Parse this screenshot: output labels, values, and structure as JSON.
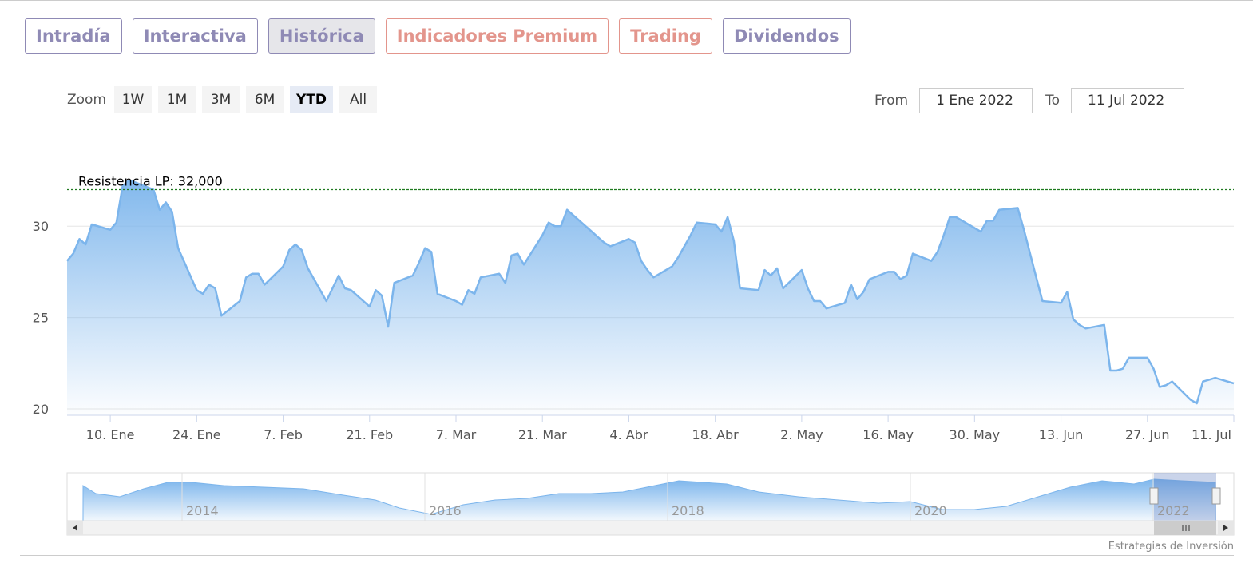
{
  "tabs": [
    "Intradía",
    "Interactiva",
    "Histórica",
    "Indicadores Premium",
    "Trading",
    "Dividendos"
  ],
  "active_tab": 2,
  "zoom": {
    "label": "Zoom",
    "buttons": [
      "1W",
      "1M",
      "3M",
      "6M",
      "YTD",
      "All"
    ],
    "active": 4
  },
  "range": {
    "from_label": "From",
    "from": "1 Ene 2022",
    "to_label": "To",
    "to": "11 Jul 2022"
  },
  "chart_data": {
    "type": "area",
    "x": [
      "2022-01-03",
      "2022-01-04",
      "2022-01-05",
      "2022-01-06",
      "2022-01-07",
      "2022-01-10",
      "2022-01-11",
      "2022-01-12",
      "2022-01-13",
      "2022-01-14",
      "2022-01-17",
      "2022-01-18",
      "2022-01-19",
      "2022-01-20",
      "2022-01-21",
      "2022-01-24",
      "2022-01-25",
      "2022-01-26",
      "2022-01-27",
      "2022-01-28",
      "2022-01-31",
      "2022-02-01",
      "2022-02-02",
      "2022-02-03",
      "2022-02-04",
      "2022-02-07",
      "2022-02-08",
      "2022-02-09",
      "2022-02-10",
      "2022-02-11",
      "2022-02-14",
      "2022-02-15",
      "2022-02-16",
      "2022-02-17",
      "2022-02-18",
      "2022-02-21",
      "2022-02-22",
      "2022-02-23",
      "2022-02-24",
      "2022-02-25",
      "2022-02-28",
      "2022-03-01",
      "2022-03-02",
      "2022-03-03",
      "2022-03-04",
      "2022-03-07",
      "2022-03-08",
      "2022-03-09",
      "2022-03-10",
      "2022-03-11",
      "2022-03-14",
      "2022-03-15",
      "2022-03-16",
      "2022-03-17",
      "2022-03-18",
      "2022-03-21",
      "2022-03-22",
      "2022-03-23",
      "2022-03-24",
      "2022-03-25",
      "2022-03-28",
      "2022-03-29",
      "2022-03-30",
      "2022-03-31",
      "2022-04-01",
      "2022-04-04",
      "2022-04-05",
      "2022-04-06",
      "2022-04-07",
      "2022-04-08",
      "2022-04-11",
      "2022-04-12",
      "2022-04-13",
      "2022-04-14",
      "2022-04-15",
      "2022-04-18",
      "2022-04-19",
      "2022-04-20",
      "2022-04-21",
      "2022-04-22",
      "2022-04-25",
      "2022-04-26",
      "2022-04-27",
      "2022-04-28",
      "2022-04-29",
      "2022-05-02",
      "2022-05-03",
      "2022-05-04",
      "2022-05-05",
      "2022-05-06",
      "2022-05-09",
      "2022-05-10",
      "2022-05-11",
      "2022-05-12",
      "2022-05-13",
      "2022-05-16",
      "2022-05-17",
      "2022-05-18",
      "2022-05-19",
      "2022-05-20",
      "2022-05-23",
      "2022-05-24",
      "2022-05-25",
      "2022-05-26",
      "2022-05-27",
      "2022-05-30",
      "2022-05-31",
      "2022-06-01",
      "2022-06-02",
      "2022-06-03",
      "2022-06-06",
      "2022-06-07",
      "2022-06-08",
      "2022-06-09",
      "2022-06-10",
      "2022-06-13",
      "2022-06-14",
      "2022-06-15",
      "2022-06-16",
      "2022-06-17",
      "2022-06-20",
      "2022-06-21",
      "2022-06-22",
      "2022-06-23",
      "2022-06-24",
      "2022-06-27",
      "2022-06-28",
      "2022-06-29",
      "2022-06-30",
      "2022-07-01",
      "2022-07-04",
      "2022-07-05",
      "2022-07-06",
      "2022-07-07",
      "2022-07-08",
      "2022-07-11"
    ],
    "series": [
      {
        "color": "#7cb5ec",
        "values": [
          28.1,
          28.5,
          29.3,
          29.0,
          30.1,
          29.8,
          30.2,
          32.2,
          32.5,
          32.4,
          32.0,
          30.9,
          31.3,
          30.8,
          28.8,
          26.5,
          26.3,
          26.8,
          26.6,
          25.1,
          25.9,
          27.2,
          27.4,
          27.4,
          26.8,
          27.8,
          28.7,
          29.0,
          28.7,
          27.7,
          25.9,
          26.6,
          27.3,
          26.6,
          26.5,
          25.6,
          26.5,
          26.2,
          24.5,
          26.9,
          27.3,
          28.0,
          28.8,
          28.6,
          26.3,
          25.9,
          25.7,
          26.5,
          26.3,
          27.2,
          27.4,
          26.9,
          28.4,
          28.5,
          27.9,
          29.5,
          30.2,
          30.0,
          30.0,
          30.9,
          30.0,
          29.7,
          29.4,
          29.1,
          28.9,
          29.3,
          29.1,
          28.1,
          27.6,
          27.2,
          27.8,
          28.3,
          28.9,
          29.5,
          30.2,
          30.1,
          29.7,
          30.5,
          29.2,
          26.6,
          26.5,
          27.6,
          27.3,
          27.7,
          26.6,
          27.6,
          26.6,
          25.9,
          25.9,
          25.5,
          25.8,
          26.8,
          26.0,
          26.4,
          27.1,
          27.5,
          27.5,
          27.1,
          27.3,
          28.5,
          28.1,
          28.6,
          29.5,
          30.5,
          30.5,
          29.9,
          29.7,
          30.3,
          30.3,
          30.9,
          31.0,
          29.8,
          28.5,
          27.2,
          25.9,
          25.8,
          26.4,
          24.9,
          24.6,
          24.4,
          24.6,
          22.1,
          22.1,
          22.2,
          22.8,
          22.8,
          22.2,
          21.2,
          21.3,
          21.5,
          20.5,
          20.3,
          21.5,
          21.6,
          21.7,
          21.4
        ]
      }
    ],
    "xlim": [
      "2022-01-03",
      "2022-07-11"
    ],
    "xticks": [
      {
        "value": "2022-01-10",
        "label": "10. Ene"
      },
      {
        "value": "2022-01-24",
        "label": "24. Ene"
      },
      {
        "value": "2022-02-07",
        "label": "7. Feb"
      },
      {
        "value": "2022-02-21",
        "label": "21. Feb"
      },
      {
        "value": "2022-03-07",
        "label": "7. Mar"
      },
      {
        "value": "2022-03-21",
        "label": "21. Mar"
      },
      {
        "value": "2022-04-04",
        "label": "4. Abr"
      },
      {
        "value": "2022-04-18",
        "label": "18. Abr"
      },
      {
        "value": "2022-05-02",
        "label": "2. May"
      },
      {
        "value": "2022-05-16",
        "label": "16. May"
      },
      {
        "value": "2022-05-30",
        "label": "30. May"
      },
      {
        "value": "2022-06-13",
        "label": "13. Jun"
      },
      {
        "value": "2022-06-27",
        "label": "27. Jun"
      },
      {
        "value": "2022-07-11",
        "label": "11. Jul"
      }
    ],
    "ylim": [
      19.65,
      35.3
    ],
    "yticks": [
      20,
      25,
      30
    ],
    "grid": true,
    "plot_line": {
      "value": 32,
      "label": "Resistencia LP: 32,000",
      "color": "#1f7a1f"
    }
  },
  "navigator": {
    "labels": [
      "2014",
      "2016",
      "2018",
      "2020",
      "2022"
    ]
  },
  "credits": "Estrategias de Inversión"
}
